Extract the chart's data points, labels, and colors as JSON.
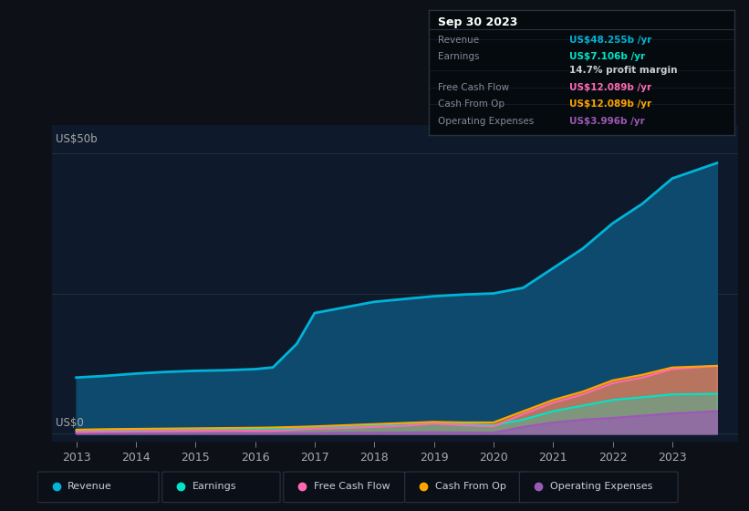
{
  "bg_color": "#0d1117",
  "plot_bg_color": "#0e1a2b",
  "years": [
    2013,
    2013.5,
    2014,
    2014.5,
    2015,
    2015.5,
    2016,
    2016.3,
    2016.7,
    2017,
    2017.5,
    2018,
    2018.5,
    2019,
    2019.5,
    2020,
    2020.5,
    2021,
    2021.5,
    2022,
    2022.5,
    2023,
    2023.75
  ],
  "revenue": [
    10.0,
    10.3,
    10.7,
    11.0,
    11.2,
    11.3,
    11.5,
    11.8,
    16.0,
    21.5,
    22.5,
    23.5,
    24.0,
    24.5,
    24.8,
    25.0,
    26.0,
    29.5,
    33.0,
    37.5,
    41.0,
    45.5,
    48.255
  ],
  "earnings": [
    0.5,
    0.55,
    0.6,
    0.65,
    0.75,
    0.8,
    0.85,
    0.9,
    1.0,
    1.1,
    1.3,
    1.5,
    1.8,
    2.0,
    1.7,
    1.5,
    2.5,
    4.0,
    5.0,
    6.0,
    6.5,
    7.0,
    7.106
  ],
  "free_cash_flow": [
    0.3,
    0.35,
    0.4,
    0.45,
    0.5,
    0.55,
    0.5,
    0.5,
    0.7,
    0.9,
    1.0,
    1.2,
    1.4,
    1.8,
    1.5,
    1.3,
    3.5,
    5.5,
    7.0,
    9.0,
    10.0,
    11.5,
    12.089
  ],
  "cash_from_op": [
    0.7,
    0.8,
    0.85,
    0.9,
    0.95,
    1.0,
    1.05,
    1.1,
    1.2,
    1.3,
    1.5,
    1.7,
    1.9,
    2.1,
    2.0,
    2.0,
    4.0,
    6.0,
    7.5,
    9.5,
    10.5,
    11.8,
    12.089
  ],
  "op_expenses": [
    0.05,
    0.05,
    0.06,
    0.06,
    0.07,
    0.08,
    0.08,
    0.09,
    0.1,
    0.12,
    0.15,
    0.18,
    0.2,
    0.25,
    0.2,
    0.18,
    1.2,
    2.0,
    2.5,
    2.8,
    3.2,
    3.6,
    3.996
  ],
  "revenue_color": "#00b4d8",
  "earnings_color": "#00e5c8",
  "fcf_color": "#ff69b4",
  "cashop_color": "#ffa500",
  "opex_color": "#9b59b6",
  "revenue_fill": "#0d4a6e",
  "ylabel": "US$50b",
  "y0label": "US$0",
  "xlim_min": 2012.6,
  "xlim_max": 2024.1,
  "ylim_min": -1.5,
  "ylim_max": 55,
  "grid_color": "#1e2d3d",
  "grid_levels": [
    0,
    25,
    50
  ],
  "tooltip_rows": [
    {
      "label": "Revenue",
      "value": "US$48.255b /yr",
      "color": "#00b4d8"
    },
    {
      "label": "Earnings",
      "value": "US$7.106b /yr",
      "color": "#00e5c8"
    },
    {
      "label": "",
      "value": "14.7% profit margin",
      "color": "#cccccc"
    },
    {
      "label": "Free Cash Flow",
      "value": "US$12.089b /yr",
      "color": "#ff69b4"
    },
    {
      "label": "Cash From Op",
      "value": "US$12.089b /yr",
      "color": "#ffa500"
    },
    {
      "label": "Operating Expenses",
      "value": "US$3.996b /yr",
      "color": "#9b59b6"
    }
  ],
  "legend_items": [
    {
      "label": "Revenue",
      "color": "#00b4d8"
    },
    {
      "label": "Earnings",
      "color": "#00e5c8"
    },
    {
      "label": "Free Cash Flow",
      "color": "#ff69b4"
    },
    {
      "label": "Cash From Op",
      "color": "#ffa500"
    },
    {
      "label": "Operating Expenses",
      "color": "#9b59b6"
    }
  ],
  "xticks": [
    2013,
    2014,
    2015,
    2016,
    2017,
    2018,
    2019,
    2020,
    2021,
    2022,
    2023
  ]
}
